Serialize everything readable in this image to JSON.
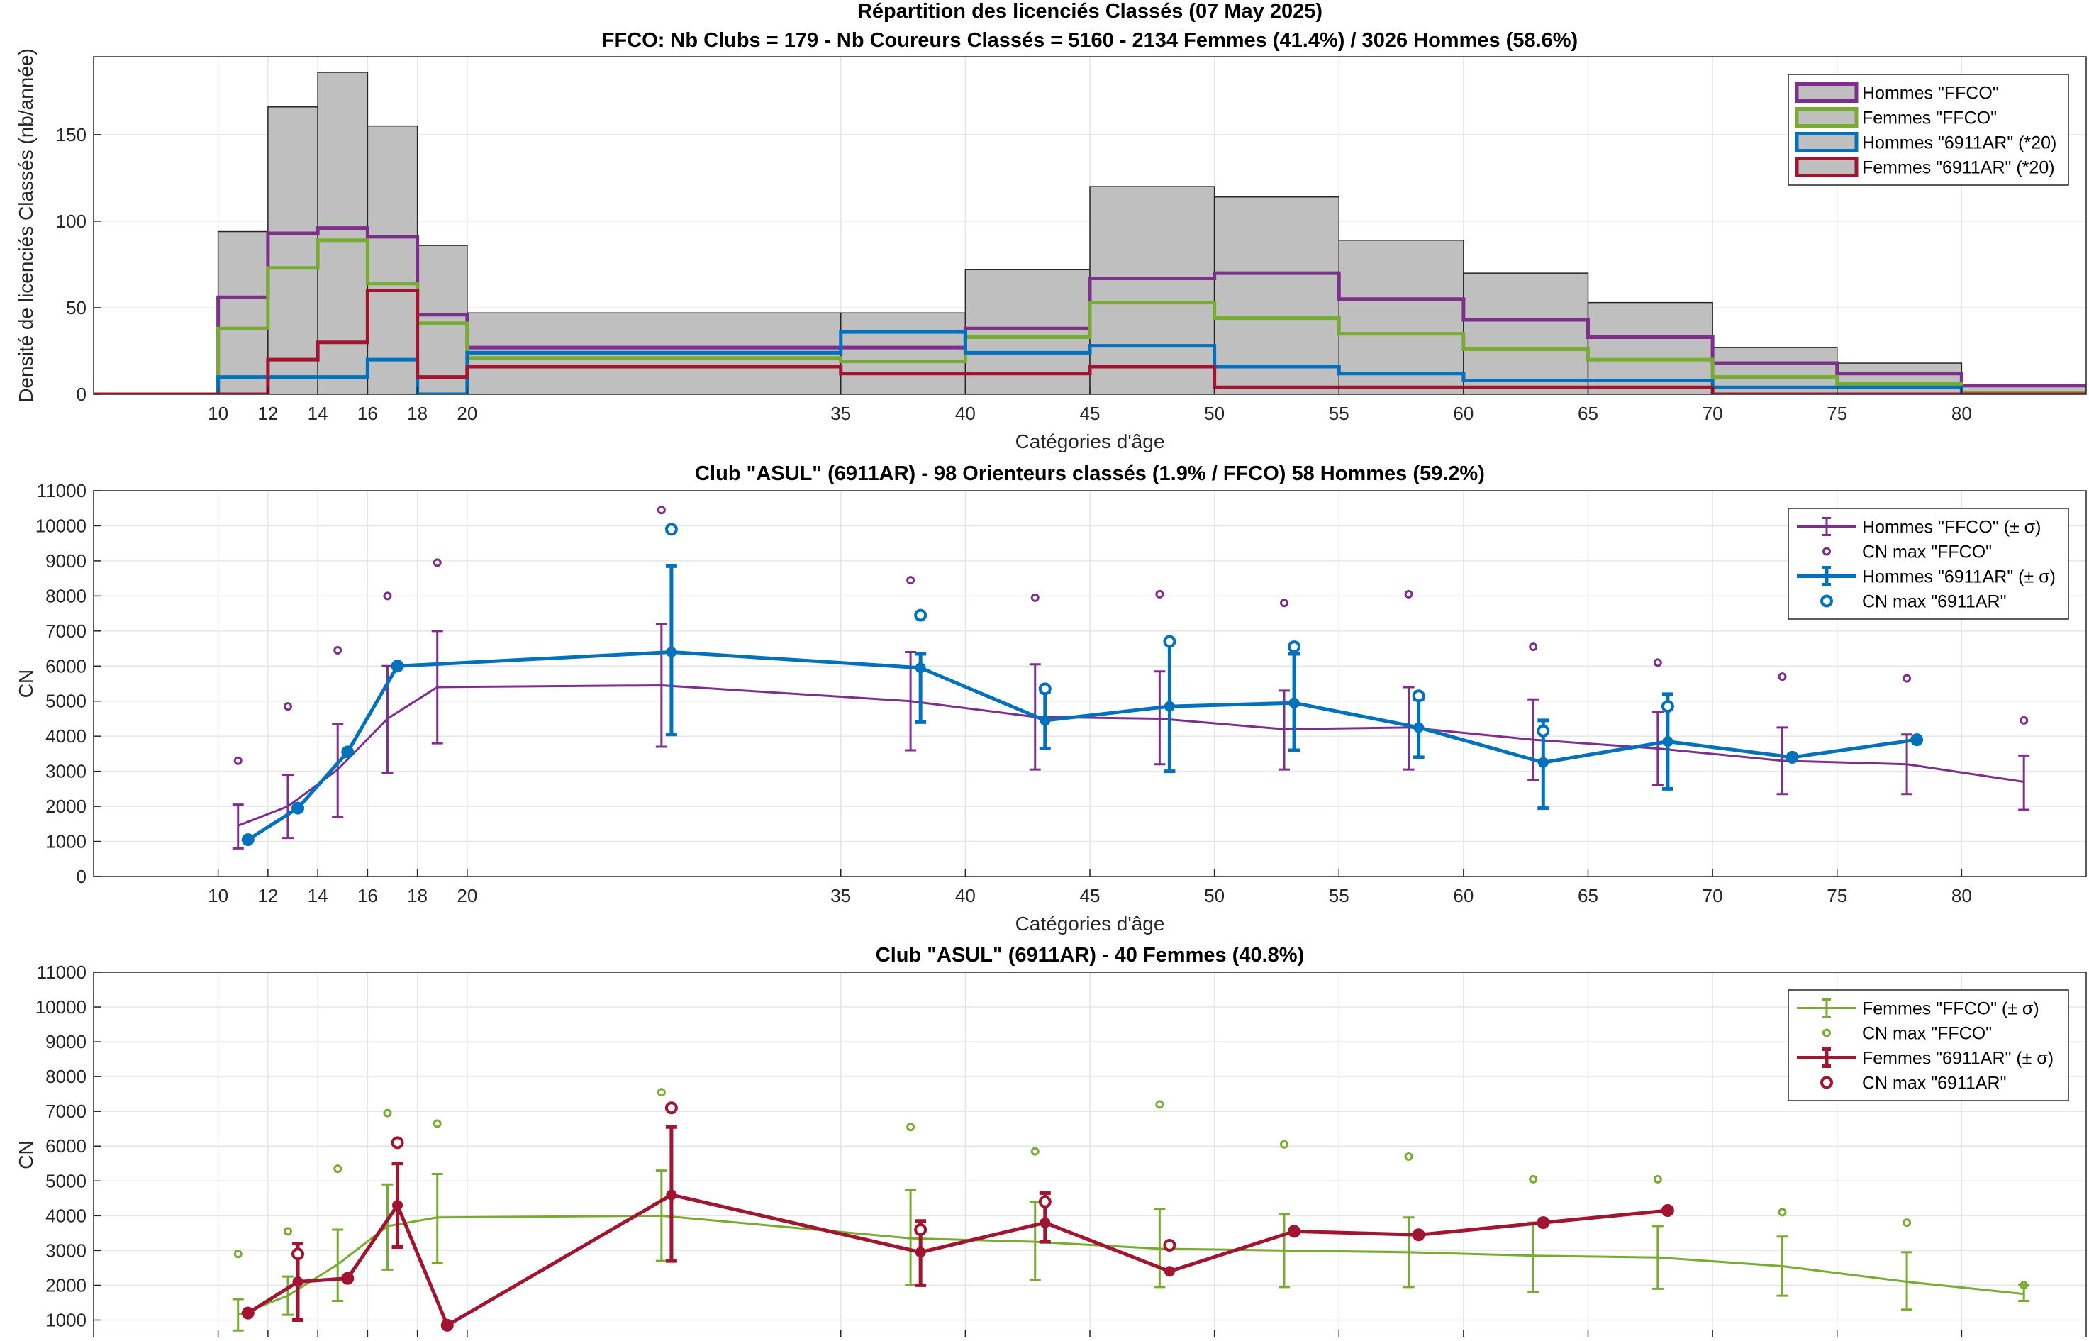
{
  "colors": {
    "hommes_ffco": "#7E2F8E",
    "femmes_ffco": "#77AC30",
    "hommes_club": "#0072BD",
    "femmes_club": "#A2142F",
    "bars_fill": "#BFBFBF"
  },
  "chart_data": [
    {
      "type": "bar",
      "title": "Répartition des licenciés Classés (07 May 2025)",
      "subtitle": "FFCO: Nb Clubs = 179   -   Nb Coureurs Classés = 5160   -   2134 Femmes (41.4%) / 3026 Hommes (58.6%)",
      "xlabel": "Catégories d'âge",
      "ylabel": "Densité de licenciés Classés (nb/année)",
      "xlim": [
        5,
        85
      ],
      "ylim": [
        0,
        195
      ],
      "xticks": [
        10,
        12,
        14,
        16,
        18,
        20,
        35,
        40,
        45,
        50,
        55,
        60,
        65,
        70,
        75,
        80
      ],
      "yticks": [
        0,
        50,
        100,
        150
      ],
      "grid": true,
      "legend_position": "top-right",
      "bin_edges": [
        5,
        10,
        12,
        14,
        16,
        18,
        20,
        35,
        40,
        45,
        50,
        55,
        60,
        65,
        70,
        75,
        80,
        85
      ],
      "bars": [
        0,
        94,
        166,
        186,
        155,
        86,
        47,
        47,
        72,
        120,
        114,
        89,
        70,
        53,
        27,
        18,
        5
      ],
      "series": [
        {
          "name": "Hommes \"FFCO\"",
          "color_key": "hommes_ffco",
          "values": [
            0,
            56,
            93,
            96,
            91,
            46,
            27,
            27,
            38,
            67,
            70,
            55,
            43,
            33,
            18,
            12,
            5
          ]
        },
        {
          "name": "Femmes \"FFCO\"",
          "color_key": "femmes_ffco",
          "values": [
            0,
            38,
            73,
            89,
            64,
            41,
            21,
            19,
            33,
            53,
            44,
            35,
            26,
            20,
            10,
            6,
            1
          ]
        },
        {
          "name": "Hommes \"6911AR\" (*20)",
          "color_key": "hommes_club",
          "values": [
            0,
            10,
            10,
            10,
            20,
            0,
            24,
            36,
            24,
            28,
            16,
            12,
            8,
            8,
            4,
            4,
            0
          ]
        },
        {
          "name": "Femmes \"6911AR\" (*20)",
          "color_key": "femmes_club",
          "values": [
            0,
            0,
            20,
            30,
            60,
            10,
            16,
            12,
            12,
            16,
            4,
            4,
            4,
            4,
            0,
            0,
            0
          ]
        }
      ]
    },
    {
      "type": "line",
      "title": "Club \"ASUL\" (6911AR)  -  98 Orienteurs classés (1.9% / FFCO)  58 Hommes (59.2%)",
      "xlabel": "Catégories d'âge",
      "ylabel": "CN",
      "xlim": [
        5,
        85
      ],
      "ylim": [
        0,
        11000
      ],
      "xticks": [
        10,
        12,
        14,
        16,
        18,
        20,
        35,
        40,
        45,
        50,
        55,
        60,
        65,
        70,
        75,
        80
      ],
      "yticks": [
        0,
        1000,
        2000,
        3000,
        4000,
        5000,
        6000,
        7000,
        8000,
        9000,
        10000,
        11000
      ],
      "grid": true,
      "legend_position": "top-right",
      "series": [
        {
          "name": "Hommes \"FFCO\" (± σ)",
          "color_key": "hommes_ffco",
          "kind": "errorbar",
          "x": [
            10.8,
            12.8,
            14.8,
            16.8,
            18.8,
            27.8,
            37.8,
            42.8,
            47.8,
            52.8,
            57.8,
            62.8,
            67.8,
            72.8,
            77.8,
            82.5
          ],
          "y": [
            1450,
            2000,
            3050,
            4500,
            5400,
            5450,
            5000,
            4550,
            4500,
            4200,
            4250,
            3900,
            3650,
            3300,
            3200,
            2700
          ],
          "err_low": [
            800,
            1100,
            1700,
            2950,
            3800,
            3700,
            3600,
            3050,
            3200,
            3050,
            3050,
            2750,
            2600,
            2350,
            2350,
            1900
          ],
          "err_high": [
            2050,
            2900,
            4350,
            6000,
            7000,
            7200,
            6400,
            6050,
            5850,
            5300,
            5400,
            5050,
            4700,
            4250,
            4050,
            3450
          ]
        },
        {
          "name": "CN max \"FFCO\"",
          "color_key": "hommes_ffco",
          "kind": "scatter",
          "x": [
            10.8,
            12.8,
            14.8,
            16.8,
            18.8,
            27.8,
            37.8,
            42.8,
            47.8,
            52.8,
            57.8,
            62.8,
            67.8,
            72.8,
            77.8,
            82.5
          ],
          "y": [
            3300,
            4850,
            6450,
            8000,
            8950,
            10450,
            8450,
            7950,
            8050,
            7800,
            8050,
            6550,
            6100,
            5700,
            5650,
            4450
          ]
        },
        {
          "name": "Hommes \"6911AR\" (± σ)",
          "color_key": "hommes_club",
          "kind": "errorbar",
          "x": [
            11.2,
            13.2,
            15.2,
            17.2,
            28.2,
            38.2,
            43.2,
            48.2,
            53.2,
            58.2,
            63.2,
            68.2,
            73.2,
            78.2
          ],
          "y": [
            1050,
            1950,
            3550,
            6000,
            6400,
            5950,
            4450,
            4850,
            4950,
            4250,
            3250,
            3850,
            3400,
            3900
          ],
          "err_low": [
            null,
            null,
            null,
            null,
            4050,
            4400,
            3650,
            3000,
            3600,
            3400,
            1950,
            2500,
            null,
            null
          ],
          "err_high": [
            null,
            null,
            null,
            null,
            8850,
            6350,
            5250,
            6700,
            6350,
            5050,
            4450,
            5200,
            null,
            null
          ]
        },
        {
          "name": "CN max \"6911AR\"",
          "color_key": "hommes_club",
          "kind": "scatter",
          "x": [
            11.2,
            13.2,
            15.2,
            17.2,
            28.2,
            38.2,
            43.2,
            48.2,
            53.2,
            58.2,
            63.2,
            68.2,
            73.2,
            78.2
          ],
          "y": [
            1050,
            1950,
            3550,
            6000,
            9900,
            7450,
            5350,
            6700,
            6550,
            5150,
            4150,
            4850,
            3400,
            3900
          ]
        }
      ]
    },
    {
      "type": "line",
      "title": "Club \"ASUL\" (6911AR)  -  40 Femmes (40.8%)",
      "xlabel": "",
      "ylabel": "CN",
      "xlim": [
        5,
        85
      ],
      "ylim": [
        500,
        11000
      ],
      "xticks": [
        10,
        12,
        14,
        16,
        18,
        20,
        35,
        40,
        45,
        50,
        55,
        60,
        65,
        70,
        75,
        80
      ],
      "yticks": [
        1000,
        2000,
        3000,
        4000,
        5000,
        6000,
        7000,
        8000,
        9000,
        10000,
        11000
      ],
      "grid": true,
      "legend_position": "top-right",
      "series": [
        {
          "name": "Femmes \"FFCO\" (± σ)",
          "color_key": "femmes_ffco",
          "kind": "errorbar",
          "x": [
            10.8,
            12.8,
            14.8,
            16.8,
            18.8,
            27.8,
            37.8,
            42.8,
            47.8,
            52.8,
            57.8,
            62.8,
            67.8,
            72.8,
            77.8,
            82.5
          ],
          "y": [
            1150,
            1700,
            2600,
            3700,
            3950,
            4000,
            3350,
            3250,
            3050,
            3000,
            2950,
            2850,
            2800,
            2550,
            2100,
            1750
          ],
          "err_low": [
            700,
            1150,
            1550,
            2450,
            2650,
            2700,
            2000,
            2150,
            1950,
            1950,
            1950,
            1800,
            1900,
            1700,
            1300,
            1550
          ],
          "err_high": [
            1600,
            2250,
            3600,
            4900,
            5200,
            5300,
            4750,
            4400,
            4200,
            4050,
            3950,
            3800,
            3700,
            3400,
            2950,
            2000
          ]
        },
        {
          "name": "CN max \"FFCO\"",
          "color_key": "femmes_ffco",
          "kind": "scatter",
          "x": [
            10.8,
            12.8,
            14.8,
            16.8,
            18.8,
            27.8,
            37.8,
            42.8,
            47.8,
            52.8,
            57.8,
            62.8,
            67.8,
            72.8,
            77.8,
            82.5
          ],
          "y": [
            2900,
            3550,
            5350,
            6950,
            6650,
            7550,
            6550,
            5850,
            7200,
            6050,
            5700,
            5050,
            5050,
            4100,
            3800,
            2000
          ]
        },
        {
          "name": "Femmes \"6911AR\" (± σ)",
          "color_key": "femmes_club",
          "kind": "errorbar",
          "x": [
            11.2,
            13.2,
            15.2,
            17.2,
            19.2,
            28.2,
            38.2,
            43.2,
            48.2,
            53.2,
            58.2,
            63.2,
            68.2
          ],
          "y": [
            1200,
            2100,
            2200,
            4300,
            850,
            4600,
            2950,
            3800,
            2400,
            3550,
            3450,
            3800,
            4150
          ],
          "err_low": [
            null,
            1000,
            null,
            3100,
            null,
            2700,
            2000,
            3250,
            null,
            null,
            null,
            null,
            null
          ],
          "err_high": [
            null,
            3200,
            null,
            5500,
            null,
            6550,
            3850,
            4650,
            null,
            null,
            null,
            null,
            null
          ]
        },
        {
          "name": "CN max \"6911AR\"",
          "color_key": "femmes_club",
          "kind": "scatter",
          "x": [
            11.2,
            13.2,
            15.2,
            17.2,
            19.2,
            28.2,
            38.2,
            43.2,
            48.2,
            53.2,
            58.2,
            63.2,
            68.2
          ],
          "y": [
            1200,
            2900,
            2200,
            6100,
            850,
            7100,
            3600,
            4400,
            3150,
            3550,
            3450,
            3800,
            4150
          ]
        }
      ]
    }
  ]
}
